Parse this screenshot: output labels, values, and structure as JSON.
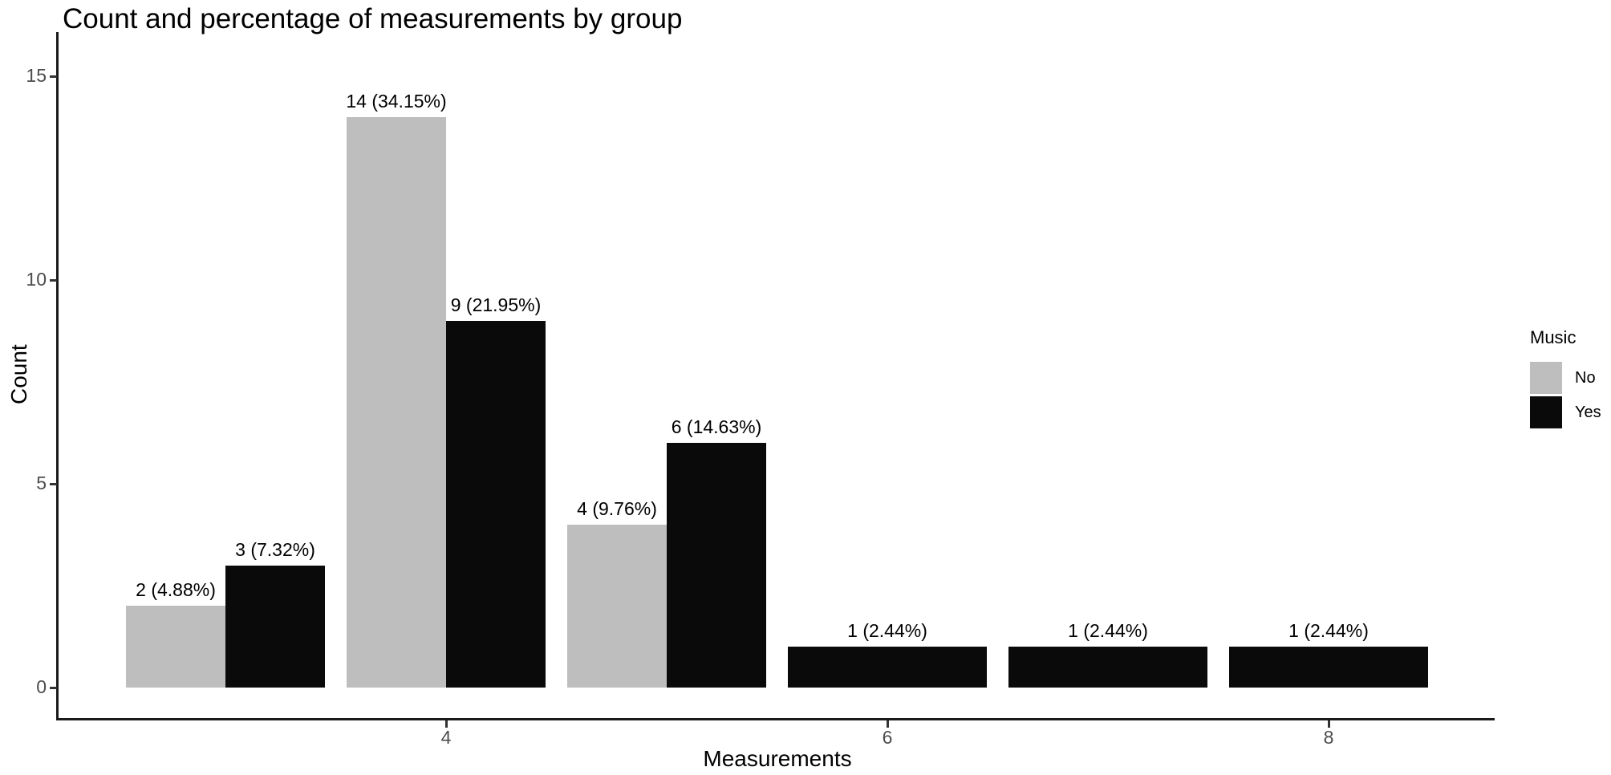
{
  "chart_data": {
    "type": "bar",
    "title": "Count and percentage of measurements by group",
    "xlabel": "Measurements",
    "ylabel": "Count",
    "x_ticks": [
      4,
      6,
      8
    ],
    "y_ticks": [
      0,
      5,
      10,
      15
    ],
    "xlim": [
      2.3,
      8.7
    ],
    "ylim": [
      0,
      15.7
    ],
    "grid": "off",
    "legend": {
      "title": "Music",
      "position": "right",
      "entries": [
        {
          "label": "No",
          "color": "#BEBEBE"
        },
        {
          "label": "Yes",
          "color": "#0A0A0A"
        }
      ]
    },
    "series_names": [
      "No",
      "Yes"
    ],
    "colors": {
      "No": "#BEBEBE",
      "Yes": "#0A0A0A"
    },
    "bars": [
      {
        "x": 3,
        "series": "No",
        "value": 2,
        "label": "2 (4.88%)"
      },
      {
        "x": 3,
        "series": "Yes",
        "value": 3,
        "label": "3 (7.32%)"
      },
      {
        "x": 4,
        "series": "No",
        "value": 14,
        "label": "14 (34.15%)"
      },
      {
        "x": 4,
        "series": "Yes",
        "value": 9,
        "label": "9 (21.95%)"
      },
      {
        "x": 5,
        "series": "No",
        "value": 4,
        "label": "4 (9.76%)"
      },
      {
        "x": 5,
        "series": "Yes",
        "value": 6,
        "label": "6 (14.63%)"
      },
      {
        "x": 6,
        "series": "Yes",
        "value": 1,
        "label": "1 (2.44%)"
      },
      {
        "x": 7,
        "series": "Yes",
        "value": 1,
        "label": "1 (2.44%)"
      },
      {
        "x": 8,
        "series": "Yes",
        "value": 1,
        "label": "1 (2.44%)"
      }
    ]
  }
}
